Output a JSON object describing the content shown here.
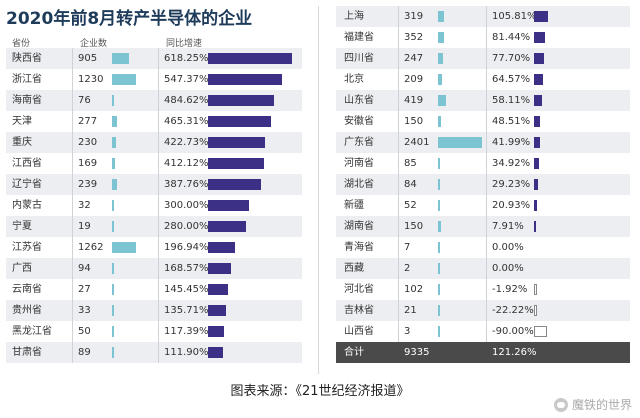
{
  "title": "2020年前8月转产半导体的企业",
  "source": "图表来源：《21世纪经济报道》",
  "watermark": "魔铁的世界",
  "headers": {
    "province": "省份",
    "count": "企业数",
    "growth": "同比增速"
  },
  "colors": {
    "count_bar": "#7cc4d2",
    "growth_bar": "#3b2f86",
    "total_row": "#4a4a4a"
  },
  "chart_data": {
    "type": "table",
    "title": "2020年前8月转产半导体的企业",
    "columns": [
      "省份",
      "企业数",
      "同比增速"
    ],
    "rows": [
      {
        "province": "陕西省",
        "count": 905,
        "growth": 618.25,
        "growth_label": "618.25%"
      },
      {
        "province": "浙江省",
        "count": 1230,
        "growth": 547.37,
        "growth_label": "547.37%"
      },
      {
        "province": "海南省",
        "count": 76,
        "growth": 484.62,
        "growth_label": "484.62%"
      },
      {
        "province": "天津",
        "count": 277,
        "growth": 465.31,
        "growth_label": "465.31%"
      },
      {
        "province": "重庆",
        "count": 230,
        "growth": 422.73,
        "growth_label": "422.73%"
      },
      {
        "province": "江西省",
        "count": 169,
        "growth": 412.12,
        "growth_label": "412.12%"
      },
      {
        "province": "辽宁省",
        "count": 239,
        "growth": 387.76,
        "growth_label": "387.76%"
      },
      {
        "province": "内蒙古",
        "count": 32,
        "growth": 300.0,
        "growth_label": "300.00%"
      },
      {
        "province": "宁夏",
        "count": 19,
        "growth": 280.0,
        "growth_label": "280.00%"
      },
      {
        "province": "江苏省",
        "count": 1262,
        "growth": 196.94,
        "growth_label": "196.94%"
      },
      {
        "province": "广西",
        "count": 94,
        "growth": 168.57,
        "growth_label": "168.57%"
      },
      {
        "province": "云南省",
        "count": 27,
        "growth": 145.45,
        "growth_label": "145.45%"
      },
      {
        "province": "贵州省",
        "count": 33,
        "growth": 135.71,
        "growth_label": "135.71%"
      },
      {
        "province": "黑龙江省",
        "count": 50,
        "growth": 117.39,
        "growth_label": "117.39%"
      },
      {
        "province": "甘肃省",
        "count": 89,
        "growth": 111.9,
        "growth_label": "111.90%"
      },
      {
        "province": "上海",
        "count": 319,
        "growth": 105.81,
        "growth_label": "105.81%"
      },
      {
        "province": "福建省",
        "count": 352,
        "growth": 81.44,
        "growth_label": "81.44%"
      },
      {
        "province": "四川省",
        "count": 247,
        "growth": 77.7,
        "growth_label": "77.70%"
      },
      {
        "province": "北京",
        "count": 209,
        "growth": 64.57,
        "growth_label": "64.57%"
      },
      {
        "province": "山东省",
        "count": 419,
        "growth": 58.11,
        "growth_label": "58.11%"
      },
      {
        "province": "安徽省",
        "count": 150,
        "growth": 48.51,
        "growth_label": "48.51%"
      },
      {
        "province": "广东省",
        "count": 2401,
        "growth": 41.99,
        "growth_label": "41.99%"
      },
      {
        "province": "河南省",
        "count": 85,
        "growth": 34.92,
        "growth_label": "34.92%"
      },
      {
        "province": "湖北省",
        "count": 84,
        "growth": 29.23,
        "growth_label": "29.23%"
      },
      {
        "province": "新疆",
        "count": 52,
        "growth": 20.93,
        "growth_label": "20.93%"
      },
      {
        "province": "湖南省",
        "count": 150,
        "growth": 7.91,
        "growth_label": "7.91%"
      },
      {
        "province": "青海省",
        "count": 7,
        "growth": 0.0,
        "growth_label": "0.00%"
      },
      {
        "province": "西藏",
        "count": 2,
        "growth": 0.0,
        "growth_label": "0.00%"
      },
      {
        "province": "河北省",
        "count": 102,
        "growth": -1.92,
        "growth_label": "-1.92%"
      },
      {
        "province": "吉林省",
        "count": 21,
        "growth": -22.22,
        "growth_label": "-22.22%"
      },
      {
        "province": "山西省",
        "count": 3,
        "growth": -90.0,
        "growth_label": "-90.00%"
      }
    ],
    "total": {
      "province": "合计",
      "count": 9335,
      "growth": 121.26,
      "growth_label": "121.26%"
    },
    "count_max": 2401,
    "left_growth_max": 618.25,
    "right_growth_max": 105.81
  }
}
